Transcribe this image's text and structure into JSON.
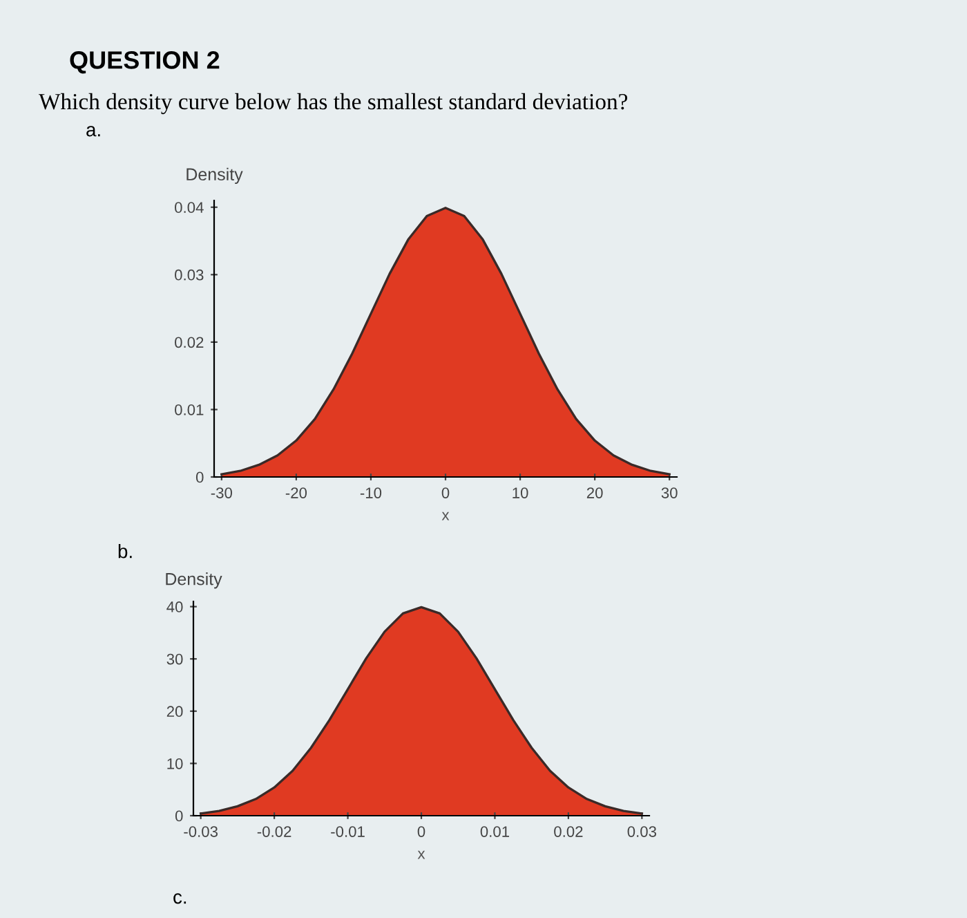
{
  "chart_data": [
    {
      "type": "area",
      "title": "QUESTION 2",
      "subtitle": "Which density curve below has the smallest standard deviation?",
      "annotations": [
        "a."
      ],
      "ylabel": "Density",
      "xlabel": "x",
      "color": "#e03a22",
      "x": [
        -30,
        -27.5,
        -25,
        -22.5,
        -20,
        -17.5,
        -15,
        -12.5,
        -10,
        -7.5,
        -5,
        -2.5,
        0,
        2.5,
        5,
        7.5,
        10,
        12.5,
        15,
        17.5,
        20,
        22.5,
        25,
        27.5,
        30
      ],
      "values": [
        0.0004,
        0.0009,
        0.0018,
        0.0032,
        0.0054,
        0.0086,
        0.013,
        0.0183,
        0.0242,
        0.0301,
        0.0352,
        0.0387,
        0.0399,
        0.0387,
        0.0352,
        0.0301,
        0.0242,
        0.0183,
        0.013,
        0.0086,
        0.0054,
        0.0032,
        0.0018,
        0.0009,
        0.0004
      ],
      "xlim": [
        -31,
        31
      ],
      "ylim": [
        0,
        0.041
      ],
      "xticks": [
        -30,
        -20,
        -10,
        0,
        10,
        20,
        30
      ],
      "yticks": [
        0,
        0.01,
        0.02,
        0.03,
        0.04
      ],
      "grid": false
    },
    {
      "type": "area",
      "annotations": [
        "b.",
        "c."
      ],
      "ylabel": "Density",
      "xlabel": "x",
      "color": "#e03a22",
      "x": [
        -0.03,
        -0.0275,
        -0.025,
        -0.0225,
        -0.02,
        -0.0175,
        -0.015,
        -0.0125,
        -0.01,
        -0.0075,
        -0.005,
        -0.0025,
        0,
        0.0025,
        0.005,
        0.0075,
        0.01,
        0.0125,
        0.015,
        0.0175,
        0.02,
        0.0225,
        0.025,
        0.0275,
        0.03
      ],
      "values": [
        0.4,
        0.9,
        1.8,
        3.2,
        5.4,
        8.6,
        13.0,
        18.3,
        24.2,
        30.1,
        35.2,
        38.7,
        39.9,
        38.7,
        35.2,
        30.1,
        24.2,
        18.3,
        13.0,
        8.6,
        5.4,
        3.2,
        1.8,
        0.9,
        0.4
      ],
      "xlim": [
        -0.031,
        0.031
      ],
      "ylim": [
        0,
        41
      ],
      "xticks": [
        -0.03,
        -0.02,
        -0.01,
        0,
        0.01,
        0.02,
        0.03
      ],
      "yticks": [
        0,
        10,
        20,
        30,
        40
      ],
      "grid": false
    }
  ]
}
